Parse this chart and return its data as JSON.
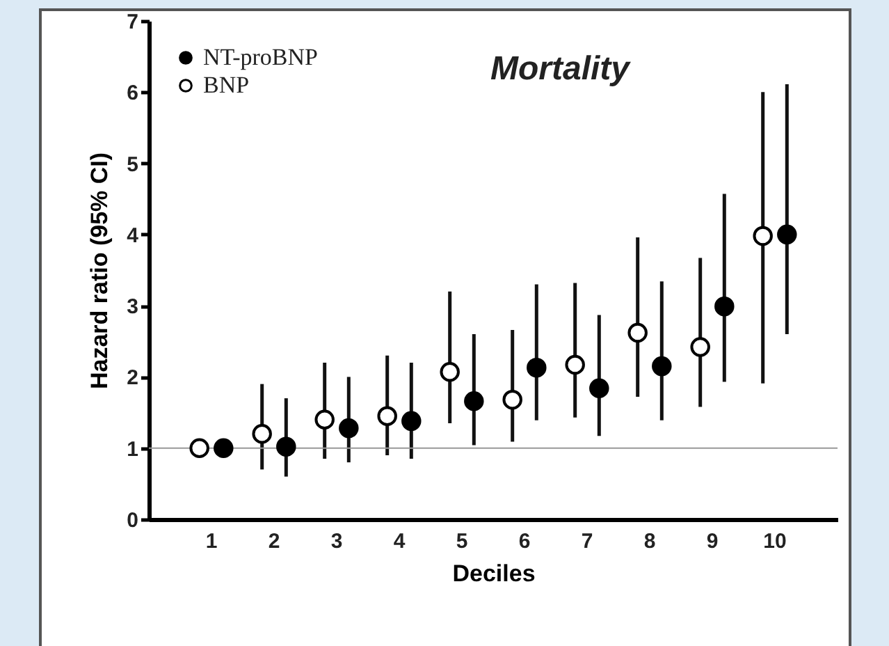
{
  "chart_data": {
    "type": "scatter",
    "title": "Mortality",
    "xlabel": "Deciles",
    "ylabel": "Hazard ratio (95% CI)",
    "categories": [
      "1",
      "2",
      "3",
      "4",
      "5",
      "6",
      "7",
      "8",
      "9",
      "10"
    ],
    "ylim": [
      0,
      7
    ],
    "yticks": [
      0,
      1,
      2,
      3,
      4,
      5,
      6,
      7
    ],
    "grid": false,
    "legend": "top left",
    "marker": "circle",
    "ref_lines": [
      {
        "axis": "y",
        "value": 1,
        "color": "#999999"
      }
    ],
    "series": [
      {
        "name": "BNP",
        "color": "#ffffff",
        "values": [
          1.0,
          1.2,
          1.4,
          1.45,
          2.07,
          1.68,
          2.17,
          2.62,
          2.42,
          3.98
        ],
        "errors": [
          null,
          [
            0.7,
            1.9
          ],
          [
            0.85,
            2.2
          ],
          [
            0.9,
            2.3
          ],
          [
            1.35,
            3.2
          ],
          [
            1.09,
            2.66
          ],
          [
            1.43,
            3.32
          ],
          [
            1.72,
            3.96
          ],
          [
            1.58,
            3.67
          ],
          [
            1.91,
            6.0
          ]
        ]
      },
      {
        "name": "NT-proBNP",
        "color": "#000000",
        "values": [
          1.0,
          1.02,
          1.28,
          1.38,
          1.66,
          2.13,
          1.84,
          2.15,
          2.99,
          4.0
        ],
        "errors": [
          null,
          [
            0.6,
            1.7
          ],
          [
            0.8,
            2.0
          ],
          [
            0.85,
            2.2
          ],
          [
            1.04,
            2.6
          ],
          [
            1.39,
            3.3
          ],
          [
            1.17,
            2.87
          ],
          [
            1.39,
            3.34
          ],
          [
            1.93,
            4.57
          ],
          [
            2.6,
            6.11
          ]
        ]
      }
    ]
  }
}
